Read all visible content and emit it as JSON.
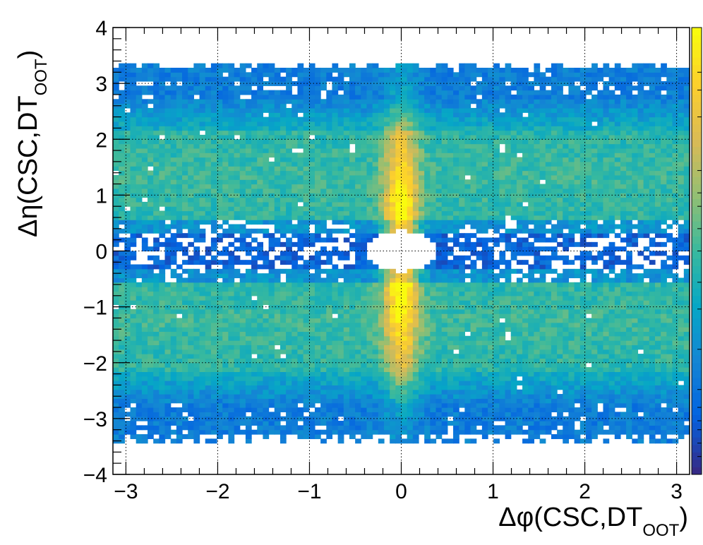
{
  "chart_data": {
    "type": "heatmap",
    "title": "",
    "xlabel": {
      "main": "Δφ(CSC,DT",
      "sub": "OOT",
      "close": ")"
    },
    "ylabel": {
      "main": "Δη(CSC,DT",
      "sub": "OOT",
      "close": ")"
    },
    "xlim": [
      -3.14159,
      3.14159
    ],
    "ylim": [
      -4,
      4
    ],
    "x_ticks": [
      {
        "value": -3,
        "label": "−3"
      },
      {
        "value": -2,
        "label": "−2"
      },
      {
        "value": -1,
        "label": "−1"
      },
      {
        "value": 0,
        "label": "0"
      },
      {
        "value": 1,
        "label": "1"
      },
      {
        "value": 2,
        "label": "2"
      },
      {
        "value": 3,
        "label": "3"
      }
    ],
    "y_ticks": [
      {
        "value": -4,
        "label": "−4"
      },
      {
        "value": -3,
        "label": "−3"
      },
      {
        "value": -2,
        "label": "−2"
      },
      {
        "value": -1,
        "label": "−1"
      },
      {
        "value": 0,
        "label": "0"
      },
      {
        "value": 1,
        "label": "1"
      },
      {
        "value": 2,
        "label": "2"
      },
      {
        "value": 3,
        "label": "3"
      },
      {
        "value": 4,
        "label": "4"
      }
    ],
    "grid": true,
    "colorbar": {
      "placement": "right",
      "scale": "log",
      "range": [
        0,
        1
      ]
    },
    "colormap": [
      "#352a87",
      "#0363e1",
      "#1485d4",
      "#06a7c6",
      "#38b99e",
      "#92bf73",
      "#d9ba56",
      "#fcce2e",
      "#f9fb0e"
    ],
    "empty_ellipse": {
      "center": [
        0,
        0
      ],
      "radius_x": 0.38,
      "radius_y": 0.37
    },
    "density_features": [
      {
        "name": "central vertical band",
        "x_center": 0,
        "x_width": 0.3,
        "y_range": [
          -2.5,
          2.5
        ],
        "peak_level": 1.0
      },
      {
        "name": "horizontal band upper",
        "y_range": [
          0.5,
          2.2
        ],
        "level": 0.5
      },
      {
        "name": "horizontal band lower",
        "y_range": [
          -2.3,
          -0.5
        ],
        "level": 0.5
      },
      {
        "name": "sparse strip near zero",
        "y_range": [
          -0.35,
          0.35
        ],
        "level": 0.15
      },
      {
        "name": "outer edges",
        "y_range": [
          [
            -3.4,
            -2.5
          ],
          [
            2.5,
            3.4
          ]
        ],
        "level": 0.2
      }
    ]
  }
}
